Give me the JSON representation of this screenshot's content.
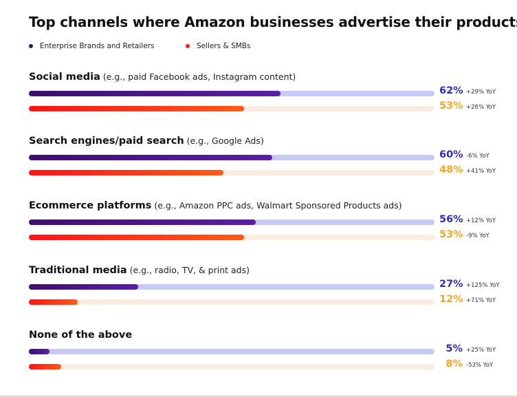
{
  "chart_data": {
    "type": "bar",
    "orientation": "horizontal",
    "title": "Top channels where Amazon businesses advertise their products",
    "categories": [
      {
        "name": "Social media",
        "example": "(e.g., paid Facebook ads, Instagram content)"
      },
      {
        "name": "Search engines/paid search",
        "example": "(e.g., Google Ads)"
      },
      {
        "name": "Ecommerce platforms",
        "example": "(e.g., Amazon PPC ads, Walmart Sponsored Products ads)"
      },
      {
        "name": "Traditional media",
        "example": "(e.g., radio, TV, & print ads)"
      },
      {
        "name": "None of the above",
        "example": ""
      }
    ],
    "series": [
      {
        "name": "Enterprise Brands and Retailers",
        "color": "#4a148c",
        "values": [
          62,
          60,
          56,
          27,
          5
        ],
        "labels": [
          "62%",
          "60%",
          "56%",
          "27%",
          "5%"
        ],
        "yoy": [
          "+29% YoY",
          "-6% YoY",
          "+12% YoY",
          "+125% YoY",
          "+25% YoY"
        ]
      },
      {
        "name": "Sellers & SMBs",
        "color": "#ff1a1a",
        "values": [
          53,
          48,
          53,
          12,
          8
        ],
        "labels": [
          "53%",
          "48%",
          "53%",
          "12%",
          "8%"
        ],
        "yoy": [
          "+26% YoY",
          "+41% YoY",
          "-9% YoY",
          "+71% YoY",
          "-53% YoY"
        ]
      }
    ],
    "xlim": [
      0,
      100
    ],
    "legend_position": "top-left"
  }
}
